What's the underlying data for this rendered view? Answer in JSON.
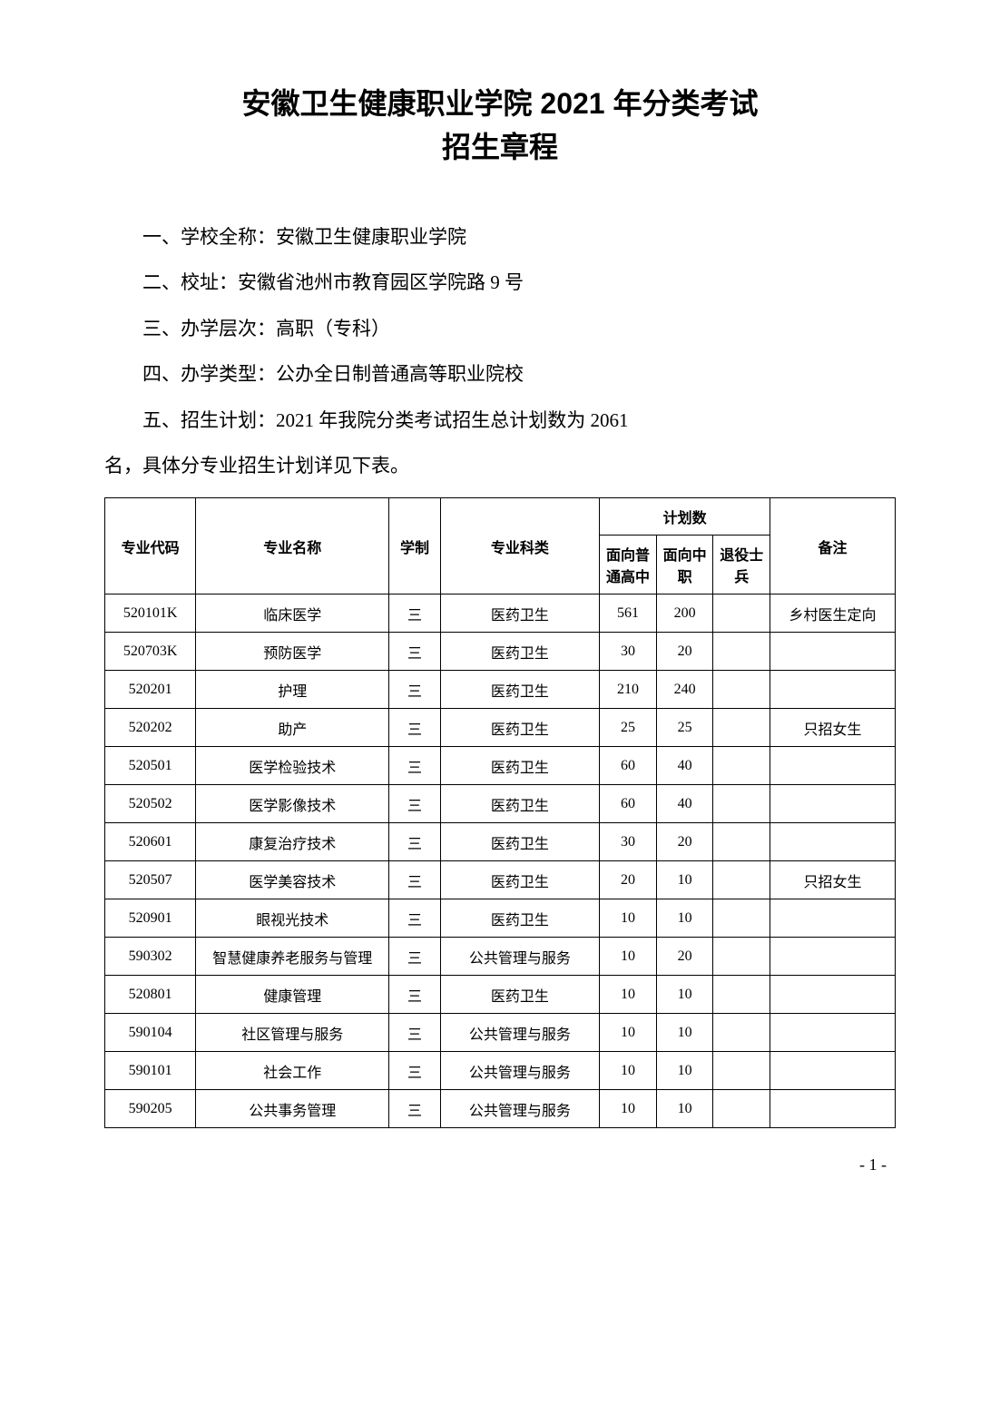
{
  "title_line1": "安徽卫生健康职业学院 2021 年分类考试",
  "title_line2": "招生章程",
  "para1": "一、学校全称：安徽卫生健康职业学院",
  "para2": "二、校址：安徽省池州市教育园区学院路 9 号",
  "para3": "三、办学层次：高职（专科）",
  "para4": "四、办学类型：公办全日制普通高等职业院校",
  "para5": "五、招生计划：2021 年我院分类考试招生总计划数为 2061",
  "para5b": "名，具体分专业招生计划详见下表。",
  "table": {
    "headers": {
      "code": "专业代码",
      "name": "专业名称",
      "years": "学制",
      "category": "专业科类",
      "plan_group": "计划数",
      "plan_hs": "面向普通高中",
      "plan_vs": "面向中职",
      "plan_vet": "退役士兵",
      "note": "备注"
    },
    "rows": [
      {
        "code": "520101K",
        "name": "临床医学",
        "years": "三",
        "category": "医药卫生",
        "hs": "561",
        "vs": "200",
        "vet": "",
        "note": "乡村医生定向"
      },
      {
        "code": "520703K",
        "name": "预防医学",
        "years": "三",
        "category": "医药卫生",
        "hs": "30",
        "vs": "20",
        "vet": "",
        "note": ""
      },
      {
        "code": "520201",
        "name": "护理",
        "years": "三",
        "category": "医药卫生",
        "hs": "210",
        "vs": "240",
        "vet": "",
        "note": ""
      },
      {
        "code": "520202",
        "name": "助产",
        "years": "三",
        "category": "医药卫生",
        "hs": "25",
        "vs": "25",
        "vet": "",
        "note": "只招女生"
      },
      {
        "code": "520501",
        "name": "医学检验技术",
        "years": "三",
        "category": "医药卫生",
        "hs": "60",
        "vs": "40",
        "vet": "",
        "note": ""
      },
      {
        "code": "520502",
        "name": "医学影像技术",
        "years": "三",
        "category": "医药卫生",
        "hs": "60",
        "vs": "40",
        "vet": "",
        "note": ""
      },
      {
        "code": "520601",
        "name": "康复治疗技术",
        "years": "三",
        "category": "医药卫生",
        "hs": "30",
        "vs": "20",
        "vet": "",
        "note": ""
      },
      {
        "code": "520507",
        "name": "医学美容技术",
        "years": "三",
        "category": "医药卫生",
        "hs": "20",
        "vs": "10",
        "vet": "",
        "note": "只招女生"
      },
      {
        "code": "520901",
        "name": "眼视光技术",
        "years": "三",
        "category": "医药卫生",
        "hs": "10",
        "vs": "10",
        "vet": "",
        "note": ""
      },
      {
        "code": "590302",
        "name": "智慧健康养老服务与管理",
        "years": "三",
        "category": "公共管理与服务",
        "hs": "10",
        "vs": "20",
        "vet": "",
        "note": ""
      },
      {
        "code": "520801",
        "name": "健康管理",
        "years": "三",
        "category": "医药卫生",
        "hs": "10",
        "vs": "10",
        "vet": "",
        "note": ""
      },
      {
        "code": "590104",
        "name": "社区管理与服务",
        "years": "三",
        "category": "公共管理与服务",
        "hs": "10",
        "vs": "10",
        "vet": "",
        "note": ""
      },
      {
        "code": "590101",
        "name": "社会工作",
        "years": "三",
        "category": "公共管理与服务",
        "hs": "10",
        "vs": "10",
        "vet": "",
        "note": ""
      },
      {
        "code": "590205",
        "name": "公共事务管理",
        "years": "三",
        "category": "公共管理与服务",
        "hs": "10",
        "vs": "10",
        "vet": "",
        "note": ""
      }
    ]
  },
  "page_number": "- 1 -"
}
